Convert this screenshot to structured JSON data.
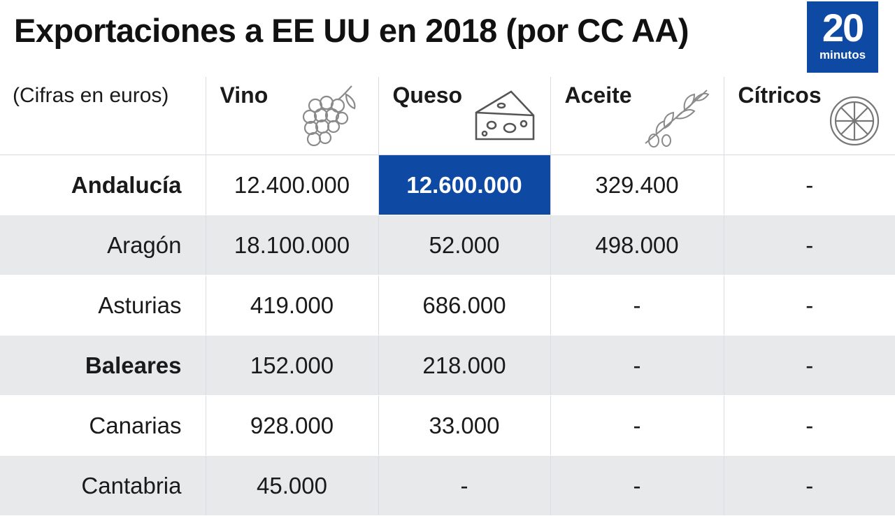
{
  "title": "Exportaciones a EE UU en 2018 (por CC AA)",
  "logo": {
    "number": "20",
    "word": "minutos"
  },
  "colors": {
    "accent": "#0e4aa3",
    "row_stripe": "#e8e9ea"
  },
  "chart_data": {
    "type": "table",
    "title": "Exportaciones a EE UU en 2018 (por CC AA)",
    "unit_note": "(Cifras en euros)",
    "columns": [
      {
        "label": "Vino",
        "icon": "grapes-icon"
      },
      {
        "label": "Queso",
        "icon": "cheese-icon"
      },
      {
        "label": "Aceite",
        "icon": "olive-branch-icon"
      },
      {
        "label": "Cítricos",
        "icon": "citrus-icon"
      }
    ],
    "rows": [
      {
        "region": "Andalucía",
        "bold": true,
        "values": [
          "12.400.000",
          "12.600.000",
          "329.400",
          "-"
        ],
        "highlight_col": 1
      },
      {
        "region": "Aragón",
        "bold": false,
        "values": [
          "18.100.000",
          "52.000",
          "498.000",
          "-"
        ]
      },
      {
        "region": "Asturias",
        "bold": false,
        "values": [
          "419.000",
          "686.000",
          "-",
          "-"
        ]
      },
      {
        "region": "Baleares",
        "bold": true,
        "values": [
          "152.000",
          "218.000",
          "-",
          "-"
        ]
      },
      {
        "region": "Canarias",
        "bold": false,
        "values": [
          "928.000",
          "33.000",
          "-",
          "-"
        ]
      },
      {
        "region": "Cantabria",
        "bold": false,
        "values": [
          "45.000",
          "-",
          "-",
          "-"
        ]
      }
    ]
  }
}
